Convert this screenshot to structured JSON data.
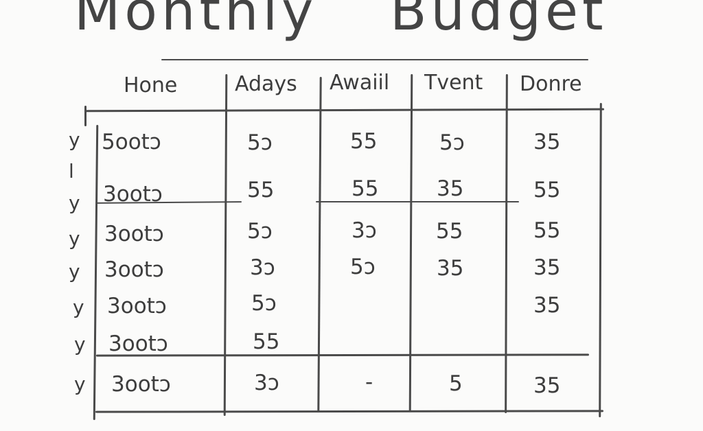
{
  "title": {
    "left": "Monthly",
    "right": "Budget"
  },
  "headers": [
    "Hone",
    "Adays",
    "Awaiil",
    "Tvent",
    "Donre"
  ],
  "rows": [
    {
      "mark": "y",
      "cells": [
        "5ootɔ",
        "5ɔ",
        "55",
        "5ɔ",
        "35"
      ]
    },
    {
      "mark": "y",
      "cells": [
        "3ootɔ",
        "55",
        "55",
        "35",
        "55"
      ]
    },
    {
      "mark": "y",
      "cells": [
        "3ootɔ",
        "5ɔ",
        "3ɔ",
        "55",
        "55"
      ]
    },
    {
      "mark": "y",
      "cells": [
        "3ootɔ",
        "3ɔ",
        "5ɔ",
        "35",
        "35"
      ]
    },
    {
      "mark": "y",
      "cells": [
        "3ootɔ",
        "5ɔ",
        "",
        "",
        "35"
      ]
    },
    {
      "mark": "y",
      "cells": [
        "3ootɔ",
        "55",
        "",
        "",
        ""
      ]
    },
    {
      "mark": "y",
      "cells": [
        "3ootɔ",
        "3ɔ",
        "-",
        "5",
        "35"
      ]
    }
  ],
  "side_tick": "l",
  "ink_color": "#3d3d3d",
  "paper_color": "#fbfbfa"
}
